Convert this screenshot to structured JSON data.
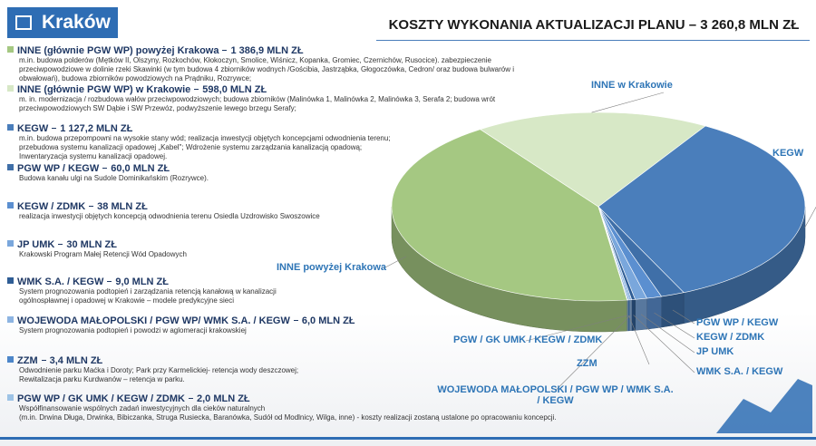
{
  "logo": "Kraków",
  "chart_data": {
    "type": "pie",
    "title": "KOSZTY WYKONANIA AKTUALIZACJI PLANU – 3 260,8 MLN ZŁ",
    "categories": [
      "INNE powyżej Krakowa",
      "INNE w Krakowie",
      "KEGW",
      "PGW WP / KEGW",
      "KEGW / ZDMK",
      "JP UMK",
      "WMK S.A. / KEGW",
      "WOJEWODA MAŁOPOLSKI / PGW WP / WMK S.A. / KEGW",
      "ZZM",
      "PGW / GK UMK / KEGW / ZDMK"
    ],
    "values": [
      1386.9,
      598.0,
      1127.2,
      60.0,
      38,
      30,
      9.0,
      6.0,
      3.4,
      2.0
    ],
    "value_labels": [
      "1 386,9 MLN ZŁ",
      "598,0 MLN ZŁ",
      "1 127,2 MLN ZŁ",
      "60,0 MLN ZŁ",
      "38 MLN ZŁ",
      "30 MLN ZŁ",
      "9,0 MLN ZŁ",
      "6,0 MLN ZŁ",
      "3,4 MLN ZŁ",
      "2,0 MLN ZŁ"
    ],
    "colors": [
      "#a5c882",
      "#d7e8c6",
      "#4a7ebb",
      "#3f6fa8",
      "#5b8fd0",
      "#7aa7dc",
      "#2f5d95",
      "#8db4e2",
      "#4d86c9",
      "#9dc3e6"
    ],
    "legend_names": [
      "INNE (głównie PGW WP) powyżej Krakowa",
      "INNE (głównie PGW WP) w Krakowie",
      "KEGW",
      "PGW WP / KEGW",
      "KEGW / ZDMK",
      "JP UMK",
      "WMK S.A. / KEGW",
      "WOJEWODA MAŁOPOLSKI / PGW WP/ WMK S.A. / KEGW",
      "ZZM",
      "PGW WP / GK UMK /  KEGW / ZDMK"
    ],
    "descriptions": [
      [
        "m.in. budowa polderów (Mętków II, Olszyny, Rozkochów, Kłokoczyn, Smolice, Wiśnicz, Kopanka, Gromiec, Czernichów, Rusocice). zabezpieczenie",
        "przeciwpowodziowe w dolinie rzeki Skawinki (w tym budowa 4 zbiorników wodnych /Gościbia, Jastrząbka, Głogoczówka, Cedron/ oraz budowa bulwarów i",
        "obwałowań), budowa zbiorników powodziowych na Prądniku, Rozrywce;"
      ],
      [
        "m. in. modernizacja / rozbudowa wałów przeciwpowodziowych; budowa zbiorników (Malinówka 1, Malinówka 2, Malinówka 3, Serafa 2; budowa wrót",
        "przeciwpowodziowych SW Dąbie i SW Przewóz,  podwyższenie lewego brzegu Serafy;"
      ],
      [
        "m.in. budowa przepompowni na wysokie stany wód; realizacja inwestycji objętych koncepcjami odwodnienia terenu;",
        "przebudowa systemu kanalizacji opadowej „Kabel\"; Wdrożenie systemu zarządzania kanalizacją opadową;",
        "Inwentaryzacja systemu kanalizacji opadowej."
      ],
      [
        "Budowa kanału ulgi na Sudole Dominikańskim (Rozrywce)."
      ],
      [
        "realizacja inwestycji objętych koncepcją odwodnienia terenu Osiedla Uzdrowisko Swoszowice"
      ],
      [
        "Krakowski Program Małej Retencji Wód  Opadowych"
      ],
      [
        "System prognozowania podtopień i zarządzania retencją kanałową w kanalizacji",
        "ogólnospławnej i opadowej w Krakowie – modele predykcyjne sieci"
      ],
      [
        "System prognozowania podtopień i powodzi w aglomeracji krakowskiej"
      ],
      [
        "Odwodnienie parku Maćka i Doroty; Park przy Karmelickiej- retencja wody deszczowej;",
        "Rewitalizacja parku Kurdwanów – retencja w parku."
      ],
      [
        "Współfinansowanie wspólnych zadań inwestycyjnych dla cieków naturalnych",
        "(m.in. Drwina Długa, Drwinka, Bibiczanka, Struga Rusiecka, Baranówka, Sudół od Modlnicy, Wilga, inne) - koszty realizacji zostaną ustalone po opracowaniu koncepcji."
      ]
    ]
  }
}
